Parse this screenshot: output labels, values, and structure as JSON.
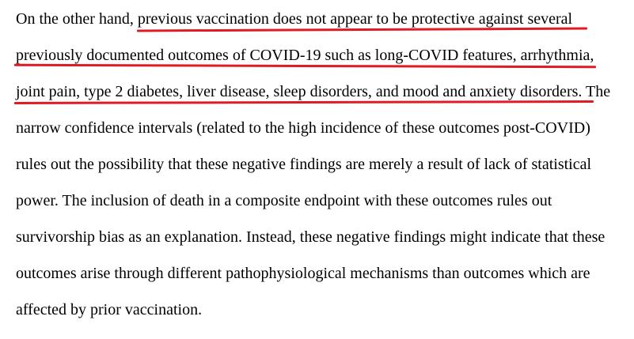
{
  "document": {
    "lines": [
      "On the other hand, previous vaccination does not appear to be protective against several",
      "previously documented outcomes of COVID-19 such as long-COVID features, arrhythmia,",
      "joint pain, type 2 diabetes, liver disease, sleep disorders, and mood and anxiety disorders. The",
      "narrow confidence intervals (related to the high incidence of these outcomes post-COVID)",
      "rules out the possibility that these negative findings are merely a result of lack of statistical",
      "power. The inclusion of death in a composite endpoint with these outcomes rules out",
      "survivorship bias as an explanation. Instead, these negative findings might indicate that these",
      "outcomes arise through different pathophysiological mechanisms than outcomes which are",
      "affected by prior vaccination."
    ],
    "highlight_color": "#e01b24"
  }
}
